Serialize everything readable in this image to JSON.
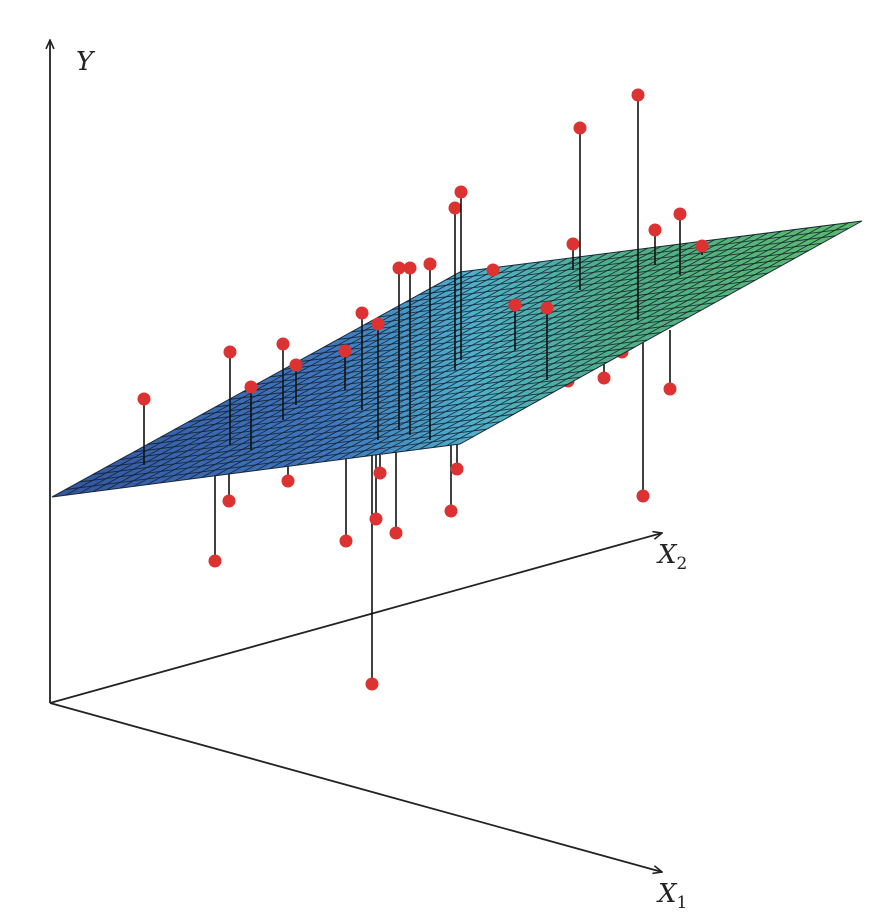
{
  "axes": {
    "y": {
      "label": "Y"
    },
    "x2": {
      "label": "X",
      "subscript": "2"
    },
    "x1": {
      "label": "X",
      "subscript": "1"
    }
  }
}
